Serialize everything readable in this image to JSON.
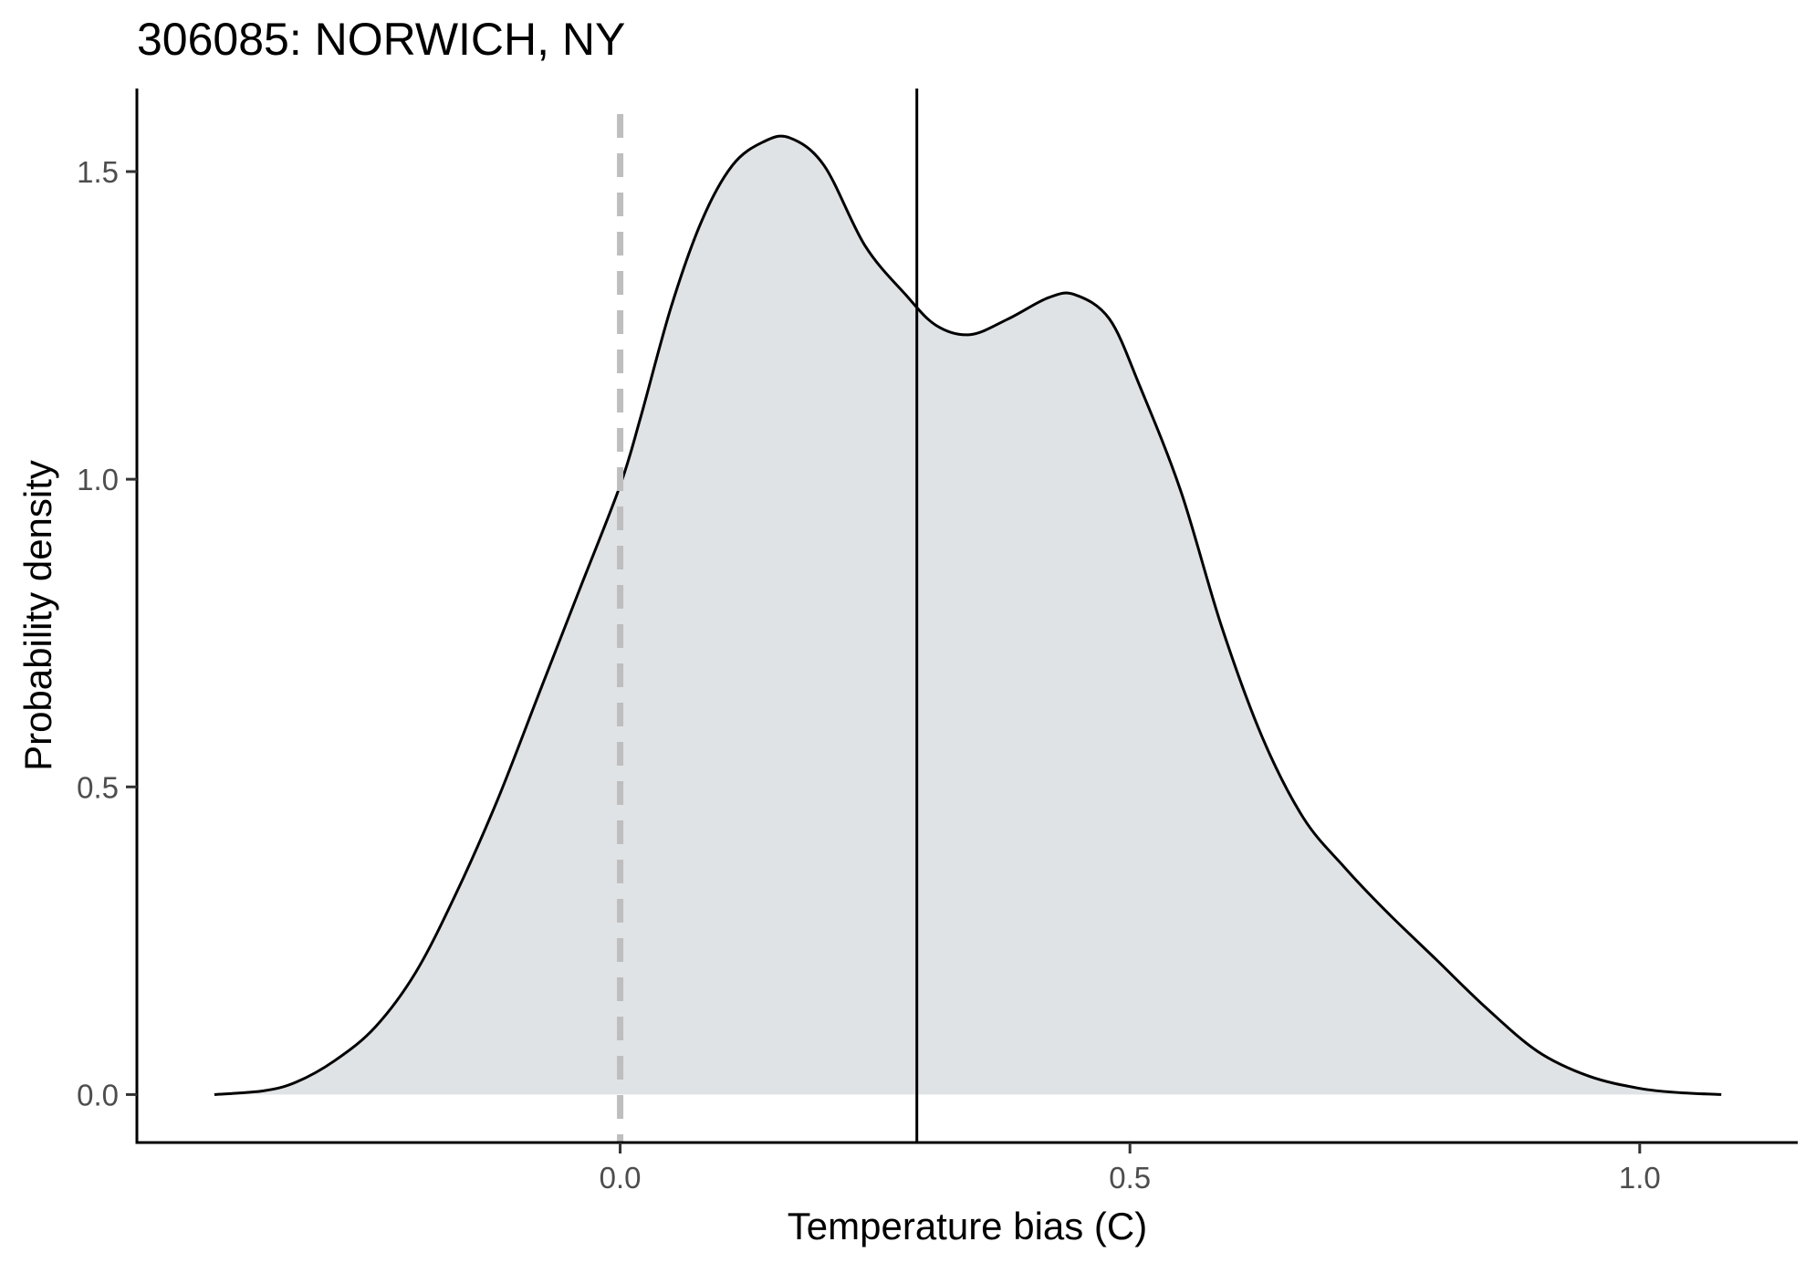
{
  "chart_data": {
    "type": "area",
    "title": "306085: NORWICH, NY",
    "xlabel": "Temperature bias (C)",
    "ylabel": "Probability density",
    "xlim": [
      -0.474,
      1.155
    ],
    "ylim": [
      -0.078,
      1.635
    ],
    "x_ticks": [
      0.0,
      0.5,
      1.0
    ],
    "x_tick_labels": [
      "0.0",
      "0.5",
      "1.0"
    ],
    "y_ticks": [
      0.0,
      0.5,
      1.0,
      1.5
    ],
    "y_tick_labels": [
      "0.0",
      "0.5",
      "1.0",
      "1.5"
    ],
    "grid": false,
    "legend": "none",
    "reference_lines": [
      {
        "x": 0.0,
        "style": "dashed",
        "color": "#bebebe"
      },
      {
        "x": 0.291,
        "style": "solid",
        "color": "#000000"
      }
    ],
    "fill_color": "#e0e3e5",
    "line_color": "#000000",
    "series": [
      {
        "x": [
          -0.398,
          -0.35,
          -0.318,
          -0.28,
          -0.24,
          -0.2,
          -0.16,
          -0.12,
          -0.08,
          -0.04,
          0.0,
          0.02,
          0.05,
          0.08,
          0.11,
          0.14,
          0.166,
          0.2,
          0.24,
          0.28,
          0.31,
          0.343,
          0.38,
          0.42,
          0.446,
          0.48,
          0.51,
          0.55,
          0.59,
          0.63,
          0.67,
          0.71,
          0.75,
          0.8,
          0.85,
          0.9,
          0.95,
          1.0,
          1.04,
          1.08
        ],
        "y": [
          0.0,
          0.006,
          0.02,
          0.055,
          0.11,
          0.2,
          0.33,
          0.48,
          0.65,
          0.82,
          0.99,
          1.1,
          1.28,
          1.42,
          1.51,
          1.548,
          1.555,
          1.51,
          1.38,
          1.3,
          1.25,
          1.235,
          1.26,
          1.295,
          1.3,
          1.26,
          1.15,
          0.98,
          0.76,
          0.58,
          0.45,
          0.37,
          0.3,
          0.22,
          0.14,
          0.07,
          0.03,
          0.01,
          0.003,
          0.0
        ]
      }
    ]
  }
}
